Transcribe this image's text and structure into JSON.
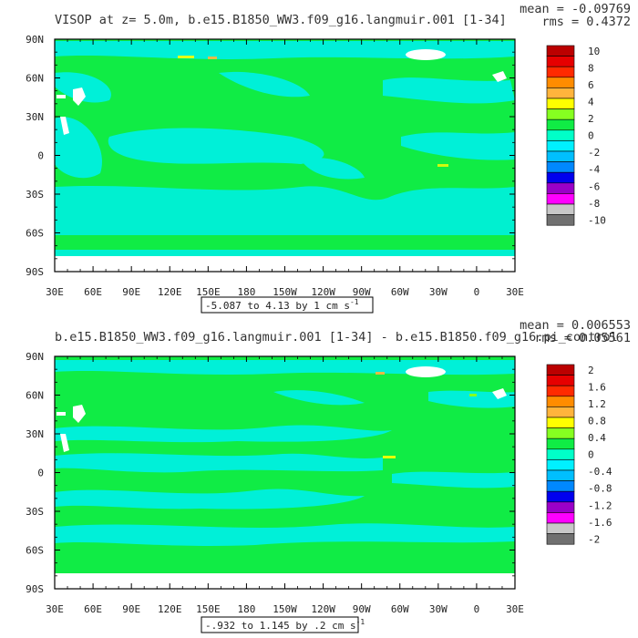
{
  "chart_data": [
    {
      "type": "heatmap",
      "title": "VISOP at z=    5.0m, b.e15.B1850_WW3.f09_g16.langmuir.001 [1-34]",
      "stats": {
        "mean": "mean = -0.09769",
        "rms": "rms = 0.4372"
      },
      "range_label": "-5.087 to 4.13 by 1 cm s",
      "units_superscript": "-1",
      "x_ticks": [
        "30E",
        "60E",
        "90E",
        "120E",
        "150E",
        "180",
        "150W",
        "120W",
        "90W",
        "60W",
        "30W",
        "0",
        "30E"
      ],
      "y_ticks": [
        "90N",
        "60N",
        "30N",
        "0",
        "30S",
        "60S",
        "90S"
      ],
      "colorbar": {
        "labels": [
          "10",
          "8",
          "6",
          "4",
          "2",
          "0",
          "-2",
          "-4",
          "-6",
          "-8",
          "-10"
        ],
        "colors": [
          "#bb0000",
          "#e60000",
          "#ff2a00",
          "#ff8c00",
          "#ffb43c",
          "#ffff00",
          "#86ff20",
          "#10ec45",
          "#00ffc8",
          "#00f0ff",
          "#00bfff",
          "#0088ff",
          "#0000ee",
          "#9a00c8",
          "#ff00ff",
          "#c8c8c8",
          "#707070"
        ]
      },
      "dominant_value_range": [
        -2,
        2
      ]
    },
    {
      "type": "heatmap",
      "title": "b.e15.B1850_WW3.f09_g16.langmuir.001 [1-34] - b.e15.B1850.f09_g16.pi_control",
      "stats": {
        "mean": "mean = 0.006553",
        "rms": "rms = 0.05561"
      },
      "range_label": "-.932 to 1.145 by .2 cm s",
      "units_superscript": "-1",
      "x_ticks": [
        "30E",
        "60E",
        "90E",
        "120E",
        "150E",
        "180",
        "150W",
        "120W",
        "90W",
        "60W",
        "30W",
        "0",
        "30E"
      ],
      "y_ticks": [
        "90N",
        "60N",
        "30N",
        "0",
        "30S",
        "60S",
        "90S"
      ],
      "colorbar": {
        "labels": [
          "2",
          "1.6",
          "1.2",
          "0.8",
          "0.4",
          "0",
          "-0.4",
          "-0.8",
          "-1.2",
          "-1.6",
          "-2"
        ],
        "colors": [
          "#bb0000",
          "#e60000",
          "#ff2a00",
          "#ff8c00",
          "#ffb43c",
          "#ffff00",
          "#86ff20",
          "#10ec45",
          "#00ffc8",
          "#00f0ff",
          "#00bfff",
          "#0088ff",
          "#0000ee",
          "#9a00c8",
          "#ff00ff",
          "#c8c8c8",
          "#707070"
        ]
      },
      "dominant_value_range": [
        -0.4,
        0.4
      ]
    }
  ],
  "colors": {
    "ocean_main": "#10ec45",
    "ocean_weak": "#00f0d8",
    "land": "#ffffff",
    "frame": "#000000"
  }
}
